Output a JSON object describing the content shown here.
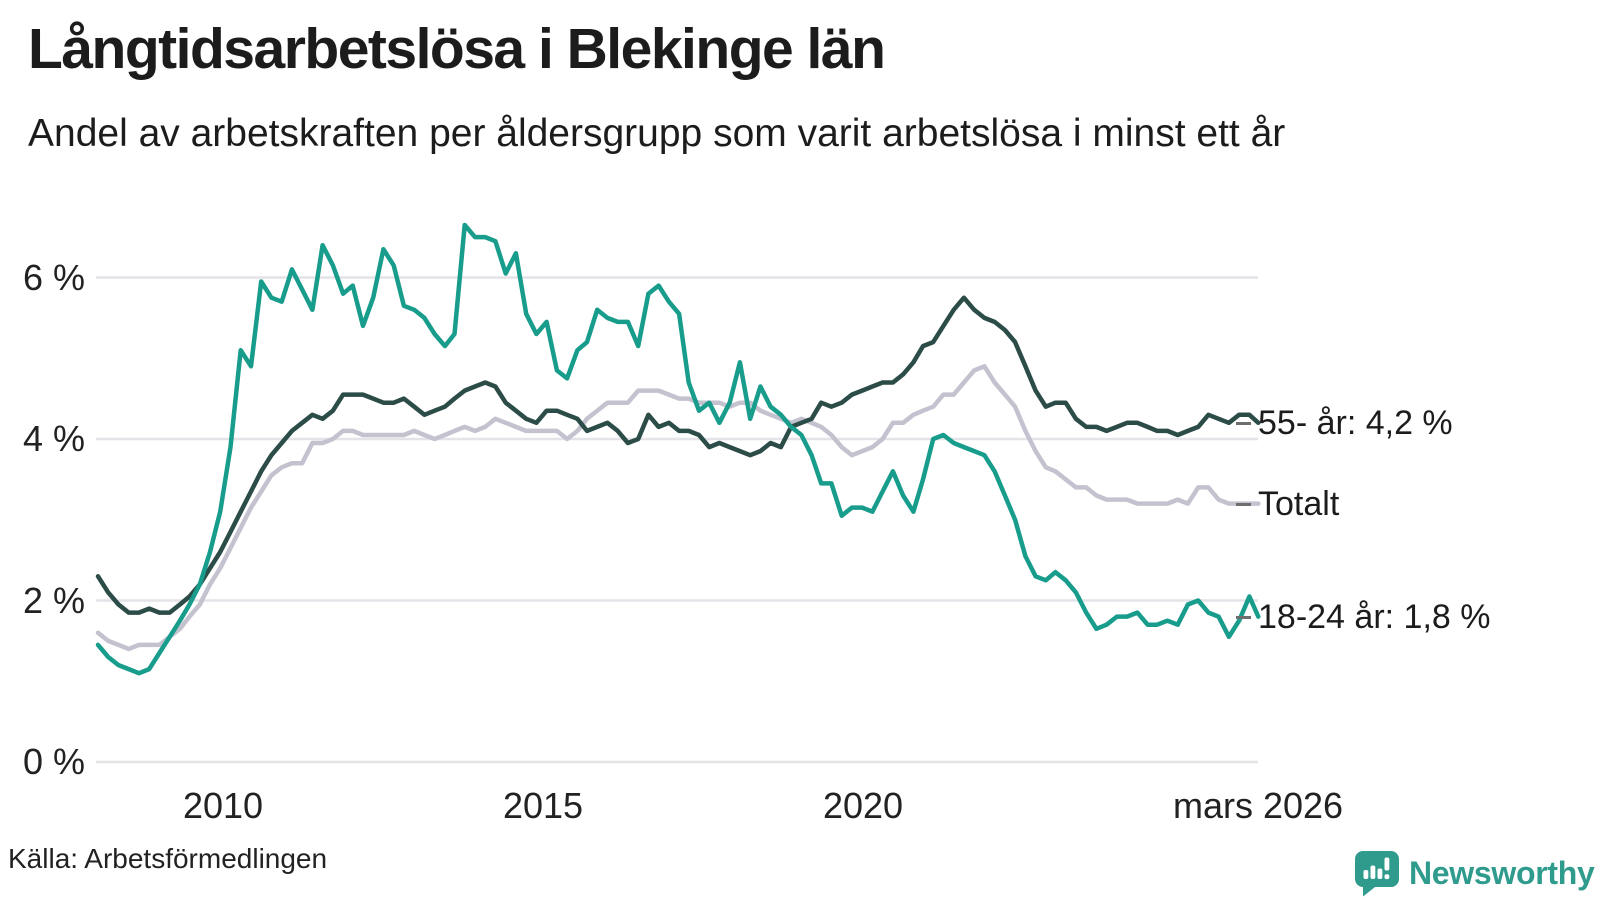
{
  "header": {
    "title": "Långtidsarbetslösa i Blekinge län",
    "subtitle": "Andel av arbetskraften per åldersgrupp som varit arbetslösa i minst ett år"
  },
  "axes": {
    "y_ticks": [
      "6 %",
      "4 %",
      "2 %",
      "0 %"
    ],
    "x_ticks": [
      "2010",
      "2015",
      "2020",
      "mars 2026"
    ]
  },
  "end_labels": {
    "age55": "55- år: 4,2 %",
    "total": "Totalt",
    "age1824": "18-24 år: 1,8 %"
  },
  "footer": {
    "source": "Källa: Arbetsförmedlingen",
    "brand": "Newsworthy"
  },
  "colors": {
    "teal": "#189C8B",
    "dark_green": "#2C4C47",
    "light_gray": "#C5C2CF",
    "grid": "#E4E4E8",
    "tick_dash": "#6E6E6E",
    "brand_teal": "#2F9B8D",
    "text": "#1C1C1C"
  },
  "chart_data": {
    "type": "line",
    "title": "Långtidsarbetslösa i Blekinge län",
    "subtitle": "Andel av arbetskraften per åldersgrupp som varit arbetslösa i minst ett år",
    "unit": "% av arbetskraften",
    "x_unit": "decimal year, monthly series 2008 - mars 2026",
    "xlim": [
      2008.04,
      2026.17
    ],
    "ylim": [
      0,
      6.9
    ],
    "y_ticks": [
      6,
      4,
      2,
      0
    ],
    "x_tick_positions": [
      2010,
      2015,
      2020,
      2026.17
    ],
    "grid": "horizontal",
    "legend_position": "line-end-labels-right",
    "x": [
      2008.04,
      2008.2,
      2008.36,
      2008.52,
      2008.68,
      2008.84,
      2009.0,
      2009.16,
      2009.32,
      2009.47,
      2009.63,
      2009.79,
      2009.95,
      2010.11,
      2010.27,
      2010.43,
      2010.59,
      2010.75,
      2010.91,
      2011.07,
      2011.23,
      2011.39,
      2011.55,
      2011.71,
      2011.87,
      2012.02,
      2012.18,
      2012.34,
      2012.5,
      2012.66,
      2012.82,
      2012.98,
      2013.14,
      2013.3,
      2013.46,
      2013.61,
      2013.77,
      2013.93,
      2014.09,
      2014.25,
      2014.41,
      2014.57,
      2014.73,
      2014.89,
      2015.05,
      2015.21,
      2015.37,
      2015.53,
      2015.68,
      2015.84,
      2016.0,
      2016.16,
      2016.32,
      2016.48,
      2016.64,
      2016.8,
      2016.96,
      2017.12,
      2017.27,
      2017.43,
      2017.59,
      2017.75,
      2017.91,
      2018.07,
      2018.23,
      2018.39,
      2018.55,
      2018.71,
      2018.87,
      2019.03,
      2019.19,
      2019.34,
      2019.5,
      2019.66,
      2019.82,
      2019.98,
      2020.14,
      2020.3,
      2020.46,
      2020.62,
      2020.78,
      2020.93,
      2021.09,
      2021.25,
      2021.41,
      2021.57,
      2021.73,
      2021.89,
      2022.05,
      2022.21,
      2022.37,
      2022.53,
      2022.69,
      2022.85,
      2023.0,
      2023.16,
      2023.32,
      2023.48,
      2023.64,
      2023.8,
      2023.96,
      2024.12,
      2024.28,
      2024.44,
      2024.59,
      2024.75,
      2024.91,
      2025.07,
      2025.23,
      2025.39,
      2025.55,
      2025.71,
      2025.87,
      2026.03,
      2026.17
    ],
    "series": [
      {
        "id": "totalt",
        "name": "Totalt",
        "color": "#C5C2CF",
        "end_label": "Totalt",
        "last_value": 3.2,
        "values": [
          1.6,
          1.5,
          1.45,
          1.4,
          1.45,
          1.45,
          1.45,
          1.55,
          1.65,
          1.8,
          1.95,
          2.2,
          2.4,
          2.65,
          2.9,
          3.15,
          3.35,
          3.55,
          3.65,
          3.7,
          3.7,
          3.95,
          3.95,
          4.0,
          4.1,
          4.1,
          4.05,
          4.05,
          4.05,
          4.05,
          4.05,
          4.1,
          4.05,
          4.0,
          4.05,
          4.1,
          4.15,
          4.1,
          4.15,
          4.25,
          4.2,
          4.15,
          4.1,
          4.1,
          4.1,
          4.1,
          4.0,
          4.1,
          4.25,
          4.35,
          4.45,
          4.45,
          4.45,
          4.6,
          4.6,
          4.6,
          4.55,
          4.5,
          4.5,
          4.45,
          4.45,
          4.45,
          4.4,
          4.45,
          4.45,
          4.35,
          4.3,
          4.25,
          4.2,
          4.25,
          4.2,
          4.15,
          4.05,
          3.9,
          3.8,
          3.85,
          3.9,
          4.0,
          4.2,
          4.2,
          4.3,
          4.35,
          4.4,
          4.55,
          4.55,
          4.7,
          4.85,
          4.9,
          4.7,
          4.55,
          4.4,
          4.1,
          3.85,
          3.65,
          3.6,
          3.5,
          3.4,
          3.4,
          3.3,
          3.25,
          3.25,
          3.25,
          3.2,
          3.2,
          3.2,
          3.2,
          3.25,
          3.2,
          3.4,
          3.4,
          3.25,
          3.2,
          3.2,
          3.2,
          3.2
        ]
      },
      {
        "id": "age55",
        "name": "55- år",
        "color": "#2C4C47",
        "end_label": "55- år: 4,2 %",
        "last_value": 4.2,
        "values": [
          2.3,
          2.1,
          1.95,
          1.85,
          1.85,
          1.9,
          1.85,
          1.85,
          1.95,
          2.05,
          2.2,
          2.4,
          2.6,
          2.85,
          3.1,
          3.35,
          3.6,
          3.8,
          3.95,
          4.1,
          4.2,
          4.3,
          4.25,
          4.35,
          4.55,
          4.55,
          4.55,
          4.5,
          4.45,
          4.45,
          4.5,
          4.4,
          4.3,
          4.35,
          4.4,
          4.5,
          4.6,
          4.65,
          4.7,
          4.65,
          4.45,
          4.35,
          4.25,
          4.2,
          4.35,
          4.35,
          4.3,
          4.25,
          4.1,
          4.15,
          4.2,
          4.1,
          3.95,
          4.0,
          4.3,
          4.15,
          4.2,
          4.1,
          4.1,
          4.05,
          3.9,
          3.95,
          3.9,
          3.85,
          3.8,
          3.85,
          3.95,
          3.9,
          4.15,
          4.2,
          4.25,
          4.45,
          4.4,
          4.45,
          4.55,
          4.6,
          4.65,
          4.7,
          4.7,
          4.8,
          4.95,
          5.15,
          5.2,
          5.4,
          5.6,
          5.75,
          5.6,
          5.5,
          5.45,
          5.35,
          5.2,
          4.9,
          4.6,
          4.4,
          4.45,
          4.45,
          4.25,
          4.15,
          4.15,
          4.1,
          4.15,
          4.2,
          4.2,
          4.15,
          4.1,
          4.1,
          4.05,
          4.1,
          4.15,
          4.3,
          4.25,
          4.2,
          4.3,
          4.3,
          4.2
        ]
      },
      {
        "id": "age1824",
        "name": "18-24 år",
        "color": "#189C8B",
        "end_label": "18-24 år: 1,8 %",
        "last_value": 1.8,
        "values": [
          1.45,
          1.3,
          1.2,
          1.15,
          1.1,
          1.15,
          1.35,
          1.55,
          1.75,
          1.95,
          2.2,
          2.6,
          3.1,
          3.9,
          5.1,
          4.9,
          5.95,
          5.75,
          5.7,
          6.1,
          5.85,
          5.6,
          6.4,
          6.15,
          5.8,
          5.9,
          5.4,
          5.75,
          6.35,
          6.15,
          5.65,
          5.6,
          5.5,
          5.3,
          5.15,
          5.3,
          6.65,
          6.5,
          6.5,
          6.45,
          6.05,
          6.3,
          5.55,
          5.3,
          5.45,
          4.85,
          4.75,
          5.1,
          5.2,
          5.6,
          5.5,
          5.45,
          5.45,
          5.15,
          5.8,
          5.9,
          5.7,
          5.55,
          4.7,
          4.35,
          4.45,
          4.2,
          4.45,
          4.95,
          4.25,
          4.65,
          4.4,
          4.3,
          4.15,
          4.05,
          3.8,
          3.45,
          3.45,
          3.05,
          3.15,
          3.15,
          3.1,
          3.35,
          3.6,
          3.3,
          3.1,
          3.5,
          4.0,
          4.05,
          3.95,
          3.9,
          3.85,
          3.8,
          3.6,
          3.3,
          3.0,
          2.55,
          2.3,
          2.25,
          2.35,
          2.25,
          2.1,
          1.85,
          1.65,
          1.7,
          1.8,
          1.8,
          1.85,
          1.7,
          1.7,
          1.75,
          1.7,
          1.95,
          2.0,
          1.85,
          1.8,
          1.55,
          1.75,
          2.05,
          1.8
        ]
      }
    ]
  }
}
